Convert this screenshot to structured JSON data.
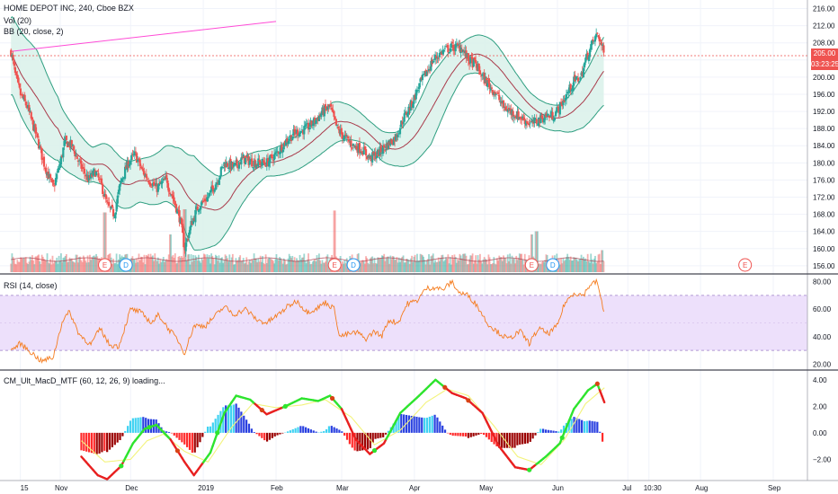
{
  "legend": {
    "title": "HOME DEPOT INC, 240, Cboe BZX",
    "vol": "Vol (20)",
    "bb": "BB (20, close, 2)",
    "rsi": "RSI (14, close)",
    "macd": "CM_Ult_MacD_MTF (60, 12, 26, 9) loading..."
  },
  "price_tags": {
    "last": "205.00",
    "countdown": "03:23:25"
  },
  "colors": {
    "up": "#26a69a",
    "down": "#ef5350",
    "bb_band": "#2e9e80",
    "bb_basis": "#a93a4a",
    "bb_fill": "#d9f1ea",
    "rsi_line": "#f57c1e",
    "rsi_fill": "#ede0fb",
    "rsi_bound": "#9c7cc7",
    "trend_line": "#ff4bd6",
    "price_line": "#ef5350",
    "macd_green": "#2ee42e",
    "macd_red": "#e82020",
    "signal": "#f3f37c",
    "hist_pos_strong": "#3fd2f2",
    "hist_pos_weak": "#2940e0",
    "hist_neg_strong": "#ff2a2a",
    "hist_neg_weak": "#9b0000"
  },
  "events": [
    {
      "t": "E",
      "x": "2018-11-20",
      "color": "#ef5350"
    },
    {
      "t": "D",
      "x": "2018-11-29",
      "color": "#2196f3"
    },
    {
      "t": "E",
      "x": "2019-02-26",
      "color": "#ef5350"
    },
    {
      "t": "D",
      "x": "2019-03-06",
      "color": "#2196f3"
    },
    {
      "t": "E",
      "x": "2019-05-21",
      "color": "#ef5350"
    },
    {
      "t": "D",
      "x": "2019-05-30",
      "color": "#2196f3"
    },
    {
      "t": "E",
      "x": "2019-08-20",
      "color": "#ef5350"
    }
  ],
  "chart_data": [
    {
      "type": "candlestick",
      "title": "HOME DEPOT INC, 240, Cboe BZX",
      "x_ticks": [
        "15",
        "Nov",
        "Dec",
        "2019",
        "Feb",
        "Mar",
        "Apr",
        "May",
        "Jun",
        "Jul",
        "10:30",
        "Aug",
        "Sep"
      ],
      "x_tick_dates": [
        "2018-10-15",
        "2018-11-01",
        "2018-12-01",
        "2019-01-01",
        "2019-02-01",
        "2019-03-01",
        "2019-04-01",
        "2019-05-01",
        "2019-06-01",
        "2019-07-01",
        "2019-07-10",
        "2019-08-01",
        "2019-09-01"
      ],
      "y_ticks": [
        156,
        160,
        164,
        168,
        172,
        176,
        180,
        184,
        188,
        192,
        196,
        200,
        204,
        208,
        212,
        216
      ],
      "ylim": [
        154.5,
        218
      ],
      "close_path": [
        [
          "2018-10-11",
          206
        ],
        [
          "2018-10-13",
          200
        ],
        [
          "2018-10-15",
          196
        ],
        [
          "2018-10-18",
          193
        ],
        [
          "2018-10-22",
          186
        ],
        [
          "2018-10-25",
          180
        ],
        [
          "2018-10-29",
          174
        ],
        [
          "2018-11-01",
          180
        ],
        [
          "2018-11-03",
          185
        ],
        [
          "2018-11-06",
          184
        ],
        [
          "2018-11-09",
          180
        ],
        [
          "2018-11-13",
          176
        ],
        [
          "2018-11-16",
          178
        ],
        [
          "2018-11-19",
          174
        ],
        [
          "2018-11-21",
          170
        ],
        [
          "2018-11-24",
          168
        ],
        [
          "2018-11-27",
          176
        ],
        [
          "2018-11-30",
          180
        ],
        [
          "2018-12-03",
          182
        ],
        [
          "2018-12-06",
          178
        ],
        [
          "2018-12-09",
          176
        ],
        [
          "2018-12-12",
          174
        ],
        [
          "2018-12-16",
          176
        ],
        [
          "2018-12-19",
          172
        ],
        [
          "2018-12-22",
          167
        ],
        [
          "2018-12-24",
          160
        ],
        [
          "2018-12-27",
          166
        ],
        [
          "2018-12-30",
          170
        ],
        [
          "2019-01-03",
          172
        ],
        [
          "2019-01-07",
          176
        ],
        [
          "2019-01-10",
          180
        ],
        [
          "2019-01-14",
          179
        ],
        [
          "2019-01-18",
          181
        ],
        [
          "2019-01-23",
          180
        ],
        [
          "2019-01-28",
          180
        ],
        [
          "2019-02-01",
          182
        ],
        [
          "2019-02-05",
          185
        ],
        [
          "2019-02-09",
          187
        ],
        [
          "2019-02-14",
          188
        ],
        [
          "2019-02-18",
          190
        ],
        [
          "2019-02-21",
          192
        ],
        [
          "2019-02-24",
          193
        ],
        [
          "2019-02-27",
          188
        ],
        [
          "2019-03-02",
          186
        ],
        [
          "2019-03-06",
          184
        ],
        [
          "2019-03-10",
          183
        ],
        [
          "2019-03-13",
          181
        ],
        [
          "2019-03-16",
          182
        ],
        [
          "2019-03-20",
          184
        ],
        [
          "2019-03-24",
          186
        ],
        [
          "2019-03-27",
          190
        ],
        [
          "2019-03-31",
          194
        ],
        [
          "2019-04-03",
          198
        ],
        [
          "2019-04-06",
          201
        ],
        [
          "2019-04-09",
          204
        ],
        [
          "2019-04-13",
          206
        ],
        [
          "2019-04-17",
          207
        ],
        [
          "2019-04-21",
          207
        ],
        [
          "2019-04-24",
          204
        ],
        [
          "2019-04-27",
          203
        ],
        [
          "2019-04-30",
          200
        ],
        [
          "2019-05-03",
          198
        ],
        [
          "2019-05-06",
          196
        ],
        [
          "2019-05-09",
          193
        ],
        [
          "2019-05-12",
          192
        ],
        [
          "2019-05-15",
          191
        ],
        [
          "2019-05-18",
          190
        ],
        [
          "2019-05-21",
          189
        ],
        [
          "2019-05-24",
          190
        ],
        [
          "2019-05-27",
          191
        ],
        [
          "2019-05-30",
          191
        ],
        [
          "2019-06-02",
          193
        ],
        [
          "2019-06-05",
          196
        ],
        [
          "2019-06-08",
          199
        ],
        [
          "2019-06-11",
          200
        ],
        [
          "2019-06-13",
          204
        ],
        [
          "2019-06-16",
          208
        ],
        [
          "2019-06-18",
          210
        ],
        [
          "2019-06-19",
          209
        ],
        [
          "2019-06-20",
          207
        ],
        [
          "2019-06-21",
          205
        ]
      ],
      "bb_halfwidth_path": [
        [
          "2018-10-11",
          9
        ],
        [
          "2018-10-22",
          11
        ],
        [
          "2018-11-01",
          7
        ],
        [
          "2018-11-15",
          4
        ],
        [
          "2018-11-25",
          6
        ],
        [
          "2018-12-05",
          5
        ],
        [
          "2018-12-20",
          7
        ],
        [
          "2018-12-28",
          11
        ],
        [
          "2019-01-10",
          7
        ],
        [
          "2019-01-28",
          3
        ],
        [
          "2019-02-10",
          4
        ],
        [
          "2019-02-25",
          5
        ],
        [
          "2019-03-12",
          3
        ],
        [
          "2019-03-25",
          4
        ],
        [
          "2019-04-08",
          8
        ],
        [
          "2019-04-22",
          4
        ],
        [
          "2019-05-05",
          5
        ],
        [
          "2019-05-20",
          3
        ],
        [
          "2019-06-02",
          3
        ],
        [
          "2019-06-12",
          6
        ],
        [
          "2019-06-21",
          8
        ]
      ],
      "trend_line": [
        [
          "2018-10-11",
          206
        ],
        [
          "2019-02-01",
          213
        ]
      ],
      "last_price": 205.0
    },
    {
      "type": "bar",
      "title": "Vol (20)",
      "seed_dates": [
        "2018-10-22",
        "2018-11-20",
        "2018-12-18",
        "2018-12-24",
        "2019-02-26",
        "2019-05-21",
        "2019-05-23",
        "2019-06-20"
      ],
      "seed_levels": [
        0.25,
        0.95,
        0.6,
        1.0,
        0.98,
        0.6,
        0.65,
        0.35
      ]
    },
    {
      "type": "line",
      "title": "RSI (14, close)",
      "y_ticks": [
        20,
        40,
        60,
        80
      ],
      "ylim": [
        17,
        83
      ],
      "bands": {
        "upper": 70,
        "lower": 30,
        "middle": 50
      },
      "values": [
        [
          "2018-10-11",
          30
        ],
        [
          "2018-10-15",
          35
        ],
        [
          "2018-10-20",
          28
        ],
        [
          "2018-10-24",
          22
        ],
        [
          "2018-10-29",
          25
        ],
        [
          "2018-11-02",
          52
        ],
        [
          "2018-11-05",
          58
        ],
        [
          "2018-11-09",
          42
        ],
        [
          "2018-11-14",
          34
        ],
        [
          "2018-11-18",
          46
        ],
        [
          "2018-11-22",
          34
        ],
        [
          "2018-11-26",
          33
        ],
        [
          "2018-12-01",
          60
        ],
        [
          "2018-12-05",
          58
        ],
        [
          "2018-12-10",
          50
        ],
        [
          "2018-12-13",
          56
        ],
        [
          "2018-12-17",
          46
        ],
        [
          "2018-12-21",
          38
        ],
        [
          "2018-12-24",
          28
        ],
        [
          "2018-12-28",
          48
        ],
        [
          "2019-01-02",
          48
        ],
        [
          "2019-01-06",
          55
        ],
        [
          "2019-01-10",
          62
        ],
        [
          "2019-01-14",
          56
        ],
        [
          "2019-01-19",
          60
        ],
        [
          "2019-01-24",
          52
        ],
        [
          "2019-01-28",
          50
        ],
        [
          "2019-02-02",
          56
        ],
        [
          "2019-02-06",
          62
        ],
        [
          "2019-02-10",
          66
        ],
        [
          "2019-02-14",
          58
        ],
        [
          "2019-02-18",
          60
        ],
        [
          "2019-02-22",
          65
        ],
        [
          "2019-02-26",
          60
        ],
        [
          "2019-02-28",
          40
        ],
        [
          "2019-03-04",
          42
        ],
        [
          "2019-03-08",
          43
        ],
        [
          "2019-03-11",
          38
        ],
        [
          "2019-03-15",
          44
        ],
        [
          "2019-03-18",
          40
        ],
        [
          "2019-03-21",
          52
        ],
        [
          "2019-03-25",
          50
        ],
        [
          "2019-03-29",
          64
        ],
        [
          "2019-04-02",
          66
        ],
        [
          "2019-04-06",
          75
        ],
        [
          "2019-04-10",
          76
        ],
        [
          "2019-04-13",
          74
        ],
        [
          "2019-04-17",
          80
        ],
        [
          "2019-04-20",
          72
        ],
        [
          "2019-04-24",
          70
        ],
        [
          "2019-04-28",
          62
        ],
        [
          "2019-05-02",
          50
        ],
        [
          "2019-05-06",
          44
        ],
        [
          "2019-05-11",
          38
        ],
        [
          "2019-05-16",
          44
        ],
        [
          "2019-05-20",
          35
        ],
        [
          "2019-05-24",
          46
        ],
        [
          "2019-05-28",
          42
        ],
        [
          "2019-06-01",
          48
        ],
        [
          "2019-06-04",
          64
        ],
        [
          "2019-06-08",
          72
        ],
        [
          "2019-06-12",
          70
        ],
        [
          "2019-06-15",
          78
        ],
        [
          "2019-06-18",
          80
        ],
        [
          "2019-06-21",
          55
        ]
      ]
    },
    {
      "type": "line",
      "title": "CM_Ult_MacD_MTF (60, 12, 26, 9)",
      "y_ticks": [
        -2.0,
        0.0,
        2.0,
        4.0
      ],
      "ylim": [
        -3.6,
        4.6
      ],
      "macd": [
        [
          "2018-11-10",
          -1.8
        ],
        [
          "2018-11-17",
          -3.2
        ],
        [
          "2018-11-21",
          -3.5
        ],
        [
          "2018-11-27",
          -2.5
        ],
        [
          "2018-12-02",
          -0.8
        ],
        [
          "2018-12-07",
          0.3
        ],
        [
          "2018-12-12",
          0.6
        ],
        [
          "2018-12-18",
          -0.5
        ],
        [
          "2018-12-24",
          -2.2
        ],
        [
          "2018-12-28",
          -3.2
        ],
        [
          "2019-01-04",
          -1.5
        ],
        [
          "2019-01-10",
          1.5
        ],
        [
          "2019-01-15",
          2.8
        ],
        [
          "2019-01-21",
          2.5
        ],
        [
          "2019-01-28",
          1.4
        ],
        [
          "2019-02-05",
          2.0
        ],
        [
          "2019-02-12",
          2.6
        ],
        [
          "2019-02-19",
          2.4
        ],
        [
          "2019-02-24",
          2.8
        ],
        [
          "2019-03-01",
          1.8
        ],
        [
          "2019-03-07",
          -0.5
        ],
        [
          "2019-03-13",
          -1.6
        ],
        [
          "2019-03-19",
          -0.8
        ],
        [
          "2019-03-26",
          1.5
        ],
        [
          "2019-04-03",
          2.8
        ],
        [
          "2019-04-10",
          4.0
        ],
        [
          "2019-04-17",
          3.0
        ],
        [
          "2019-04-23",
          2.6
        ],
        [
          "2019-04-30",
          1.5
        ],
        [
          "2019-05-07",
          -1.0
        ],
        [
          "2019-05-14",
          -2.6
        ],
        [
          "2019-05-20",
          -2.8
        ],
        [
          "2019-05-27",
          -1.8
        ],
        [
          "2019-06-02",
          -0.8
        ],
        [
          "2019-06-08",
          1.8
        ],
        [
          "2019-06-14",
          3.2
        ],
        [
          "2019-06-18",
          3.7
        ],
        [
          "2019-06-21",
          2.3
        ]
      ],
      "signal": [
        [
          "2018-11-10",
          -0.6
        ],
        [
          "2018-11-20",
          -2.2
        ],
        [
          "2018-12-01",
          -2.0
        ],
        [
          "2018-12-08",
          -0.6
        ],
        [
          "2018-12-15",
          -0.1
        ],
        [
          "2018-12-24",
          -1.4
        ],
        [
          "2019-01-03",
          -2.2
        ],
        [
          "2019-01-13",
          0.4
        ],
        [
          "2019-01-22",
          2.2
        ],
        [
          "2019-02-01",
          1.9
        ],
        [
          "2019-02-12",
          2.1
        ],
        [
          "2019-02-22",
          2.5
        ],
        [
          "2019-03-05",
          1.2
        ],
        [
          "2019-03-15",
          -0.9
        ],
        [
          "2019-03-26",
          0.2
        ],
        [
          "2019-04-06",
          2.3
        ],
        [
          "2019-04-15",
          3.3
        ],
        [
          "2019-04-24",
          2.8
        ],
        [
          "2019-05-05",
          0.5
        ],
        [
          "2019-05-15",
          -1.8
        ],
        [
          "2019-05-25",
          -2.4
        ],
        [
          "2019-06-04",
          -0.5
        ],
        [
          "2019-06-13",
          2.2
        ],
        [
          "2019-06-21",
          3.4
        ]
      ],
      "crosses": [
        "2018-11-27",
        "2018-12-09",
        "2018-12-21",
        "2019-01-07",
        "2019-01-26",
        "2019-02-05",
        "2019-02-25",
        "2019-03-15",
        "2019-04-14",
        "2019-04-24",
        "2019-05-20",
        "2019-06-03",
        "2019-06-18"
      ]
    }
  ]
}
